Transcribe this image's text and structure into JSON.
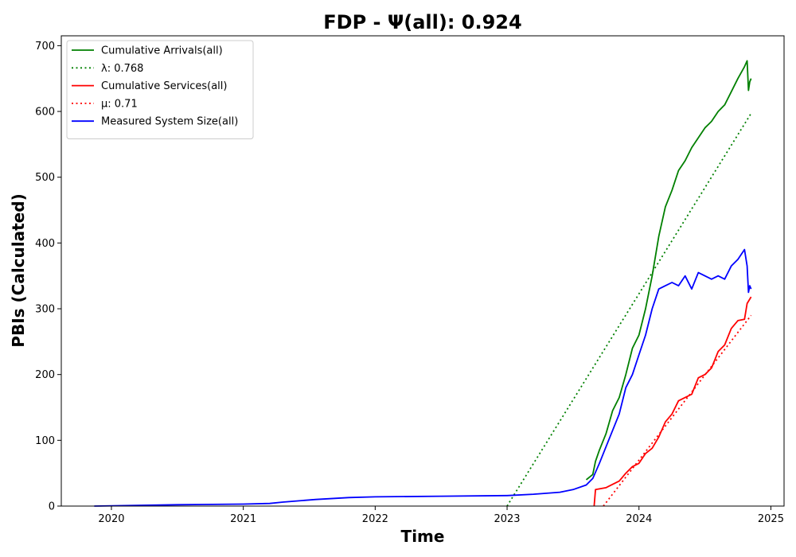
{
  "chart_data": {
    "type": "line",
    "title": "FDP -  Ψ(all): 0.924",
    "xlabel": "Time",
    "ylabel": "PBIs (Calculated)",
    "xlim": [
      2019.62,
      2025.1
    ],
    "ylim": [
      0,
      715
    ],
    "xticks": [
      2020,
      2021,
      2022,
      2023,
      2024,
      2025
    ],
    "xtick_labels": [
      "2020",
      "2021",
      "2022",
      "2023",
      "2024",
      "2025"
    ],
    "yticks": [
      0,
      100,
      200,
      300,
      400,
      500,
      600,
      700
    ],
    "ytick_labels": [
      "0",
      "100",
      "200",
      "300",
      "400",
      "500",
      "600",
      "700"
    ],
    "grid": false,
    "legend_position": "top-left",
    "series": [
      {
        "name": "Cumulative Arrivals(all)",
        "color": "#008000",
        "dash": "solid",
        "x": [
          2023.6,
          2023.65,
          2023.67,
          2023.7,
          2023.75,
          2023.8,
          2023.85,
          2023.9,
          2023.95,
          2024.0,
          2024.05,
          2024.1,
          2024.15,
          2024.2,
          2024.25,
          2024.3,
          2024.35,
          2024.4,
          2024.45,
          2024.5,
          2024.55,
          2024.6,
          2024.65,
          2024.7,
          2024.75,
          2024.8,
          2024.82,
          2024.83,
          2024.84,
          2024.85
        ],
        "y": [
          40,
          48,
          68,
          85,
          110,
          145,
          165,
          200,
          240,
          260,
          300,
          350,
          410,
          455,
          480,
          510,
          525,
          545,
          560,
          575,
          585,
          600,
          610,
          630,
          650,
          668,
          677,
          632,
          645,
          650
        ]
      },
      {
        "name": "λ: 0.768",
        "color": "#008000",
        "dash": "dotted",
        "x": [
          2023.0,
          2024.85
        ],
        "y": [
          0,
          597
        ]
      },
      {
        "name": "Cumulative Services(all)",
        "color": "#ff0000",
        "dash": "solid",
        "x": [
          2023.66,
          2023.67,
          2023.75,
          2023.8,
          2023.85,
          2023.9,
          2023.95,
          2024.0,
          2024.05,
          2024.1,
          2024.15,
          2024.2,
          2024.25,
          2024.3,
          2024.35,
          2024.4,
          2024.45,
          2024.5,
          2024.55,
          2024.6,
          2024.65,
          2024.7,
          2024.75,
          2024.8,
          2024.82,
          2024.85
        ],
        "y": [
          0,
          25,
          28,
          33,
          38,
          50,
          60,
          65,
          80,
          88,
          105,
          128,
          140,
          160,
          165,
          170,
          195,
          200,
          210,
          235,
          245,
          270,
          282,
          284,
          308,
          318
        ]
      },
      {
        "name": "μ: 0.71",
        "color": "#ff0000",
        "dash": "dotted",
        "x": [
          2023.73,
          2024.85
        ],
        "y": [
          0,
          290
        ]
      },
      {
        "name": "Measured System Size(all)",
        "color": "#0000ff",
        "dash": "solid",
        "x": [
          2019.87,
          2020.5,
          2021.0,
          2021.2,
          2021.3,
          2021.55,
          2021.8,
          2022.0,
          2022.5,
          2023.0,
          2023.2,
          2023.4,
          2023.5,
          2023.6,
          2023.65,
          2023.7,
          2023.75,
          2023.8,
          2023.85,
          2023.9,
          2023.95,
          2024.0,
          2024.05,
          2024.1,
          2024.15,
          2024.2,
          2024.25,
          2024.3,
          2024.35,
          2024.4,
          2024.45,
          2024.5,
          2024.55,
          2024.6,
          2024.65,
          2024.7,
          2024.75,
          2024.8,
          2024.82,
          2024.83,
          2024.84,
          2024.85
        ],
        "y": [
          0,
          2,
          3,
          4,
          6,
          10,
          13,
          14,
          15,
          16,
          18,
          21,
          25,
          32,
          42,
          65,
          90,
          115,
          140,
          180,
          200,
          230,
          260,
          300,
          330,
          335,
          340,
          335,
          350,
          330,
          355,
          350,
          345,
          350,
          345,
          365,
          375,
          390,
          365,
          325,
          335,
          330
        ]
      }
    ]
  }
}
